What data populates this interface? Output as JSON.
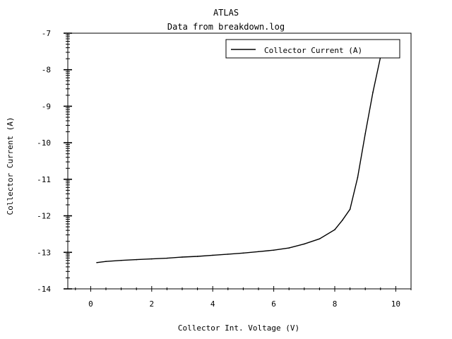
{
  "chart_data": {
    "type": "line",
    "title": "ATLAS",
    "subtitle": "Data from breakdown.log",
    "xlabel": "Collector Int. Voltage (V)",
    "ylabel": "Collector Current (A)",
    "xlim": [
      -0.75,
      10.5
    ],
    "ylim": [
      -14,
      -7
    ],
    "x_ticks": [
      0,
      2,
      4,
      6,
      8,
      10
    ],
    "y_ticks": [
      -14,
      -13,
      -12,
      -11,
      -10,
      -9,
      -8,
      -7
    ],
    "x_tick_labels": [
      "0",
      "2",
      "4",
      "6",
      "8",
      "10"
    ],
    "y_tick_labels": [
      "-14",
      "-13",
      "-12",
      "-11",
      "-10",
      "-9",
      "-8",
      "-7"
    ],
    "grid": false,
    "legend_position": "top-right",
    "series": [
      {
        "name": "Collector Current (A)",
        "color": "#000000",
        "x": [
          0.2,
          0.5,
          1.0,
          1.5,
          2.0,
          2.5,
          3.0,
          3.5,
          4.0,
          4.5,
          5.0,
          5.5,
          6.0,
          6.5,
          7.0,
          7.5,
          8.0,
          8.25,
          8.5,
          8.75,
          9.0,
          9.25,
          9.5
        ],
        "y": [
          -13.28,
          -13.25,
          -13.22,
          -13.2,
          -13.18,
          -13.16,
          -13.13,
          -13.11,
          -13.08,
          -13.05,
          -13.02,
          -12.98,
          -12.94,
          -12.88,
          -12.77,
          -12.63,
          -12.38,
          -12.12,
          -11.82,
          -10.95,
          -9.75,
          -8.62,
          -7.65
        ]
      }
    ]
  }
}
